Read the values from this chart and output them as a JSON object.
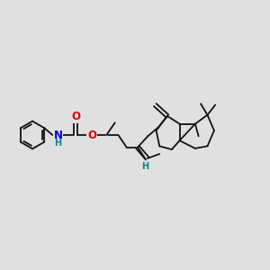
{
  "background_color": "#e0e0e0",
  "bond_color": "#111111",
  "N_color": "#0000ee",
  "O_color": "#dd0000",
  "H_color": "#008888",
  "line_width": 1.3,
  "figsize": [
    3.0,
    3.0
  ],
  "dpi": 100,
  "xlim": [
    0,
    12
  ],
  "ylim": [
    2,
    10
  ]
}
